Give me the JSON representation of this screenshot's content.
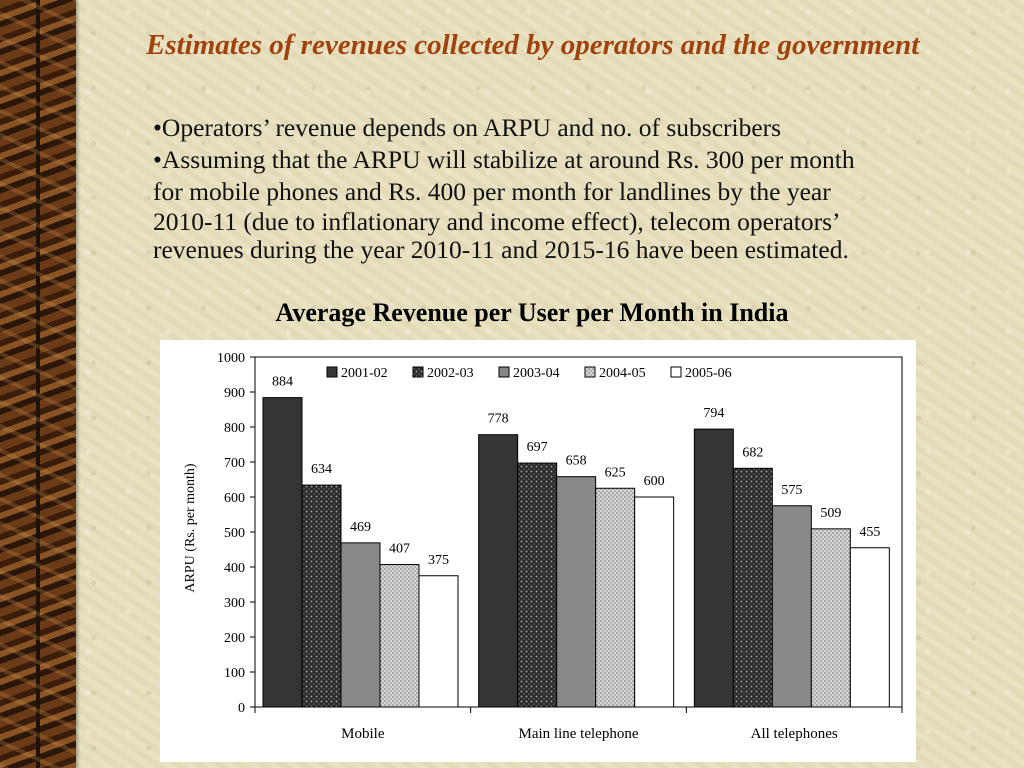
{
  "slide": {
    "title": "Estimates of revenues collected by operators and the government",
    "bullets": [
      "•Operators’ revenue depends on ARPU and no. of subscribers",
      "•Assuming that the ARPU will stabilize at around Rs. 300 per month",
      "for mobile phones and Rs. 400 per month for landlines by the year",
      "2010-11 (due to inflationary and income effect), telecom operators’",
      "revenues during the year 2010-11 and 2015-16 have been estimated."
    ]
  },
  "chart_data": {
    "type": "bar",
    "title": "Average Revenue per User per Month in India",
    "ylabel": "ARPU (Rs. per month)",
    "xlabel": "",
    "ylim": [
      0,
      1000
    ],
    "yticks": [
      0,
      100,
      200,
      300,
      400,
      500,
      600,
      700,
      800,
      900,
      1000
    ],
    "grid": false,
    "legend_position": "top",
    "categories": [
      "Mobile",
      "Main line telephone",
      "All telephones"
    ],
    "series": [
      {
        "name": "2001-02",
        "values": [
          884,
          778,
          794
        ],
        "color": "#353535",
        "pattern": "solid"
      },
      {
        "name": "2002-03",
        "values": [
          634,
          697,
          682
        ],
        "color": "#3a3a3a",
        "pattern": "dots-dark"
      },
      {
        "name": "2003-04",
        "values": [
          469,
          658,
          575
        ],
        "color": "#888888",
        "pattern": "solid"
      },
      {
        "name": "2004-05",
        "values": [
          407,
          625,
          509
        ],
        "color": "#c8c8c8",
        "pattern": "dots-light"
      },
      {
        "name": "2005-06",
        "values": [
          375,
          600,
          455
        ],
        "color": "#ffffff",
        "pattern": "solid"
      }
    ]
  }
}
